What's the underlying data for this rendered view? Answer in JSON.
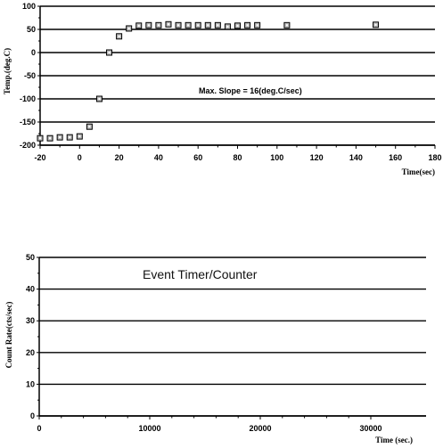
{
  "chart_data": [
    {
      "type": "scatter",
      "ylabel": "Temp.(deg.C)",
      "xlabel": "Time(sec)",
      "xlim": [
        -20,
        180
      ],
      "ylim": [
        -200,
        100
      ],
      "xticks": [
        "-20",
        "0",
        "20",
        "40",
        "60",
        "80",
        "100",
        "120",
        "140",
        "160",
        "180"
      ],
      "yticks": [
        "100",
        "50",
        "0",
        "-50",
        "-100",
        "-150",
        "-200"
      ],
      "grid": "horizontal",
      "annotation": "Max. Slope = 16(deg.C/sec)",
      "marker": "square",
      "x": [
        -20,
        -15,
        -10,
        -5,
        0,
        5,
        10,
        15,
        20,
        25,
        30,
        35,
        40,
        45,
        50,
        55,
        60,
        65,
        70,
        75,
        80,
        85,
        90,
        105,
        150
      ],
      "y": [
        -185,
        -185,
        -183,
        -183,
        -181,
        -160,
        -100,
        0,
        35,
        52,
        58,
        59,
        59,
        61,
        59,
        59,
        59,
        59,
        59,
        56,
        58,
        59,
        59,
        59,
        60
      ]
    },
    {
      "type": "line",
      "ylabel": "Count  Rate(cts/sec)",
      "xlabel": "Time (sec.)",
      "xlim": [
        0,
        35000
      ],
      "ylim": [
        0,
        50
      ],
      "xticks": [
        "0",
        "10000",
        "20000",
        "30000"
      ],
      "yticks": [
        "50",
        "40",
        "30",
        "20",
        "10",
        "0"
      ],
      "grid": "horizontal",
      "annotation": "Event Timer/Counter",
      "x": [],
      "y": []
    }
  ]
}
